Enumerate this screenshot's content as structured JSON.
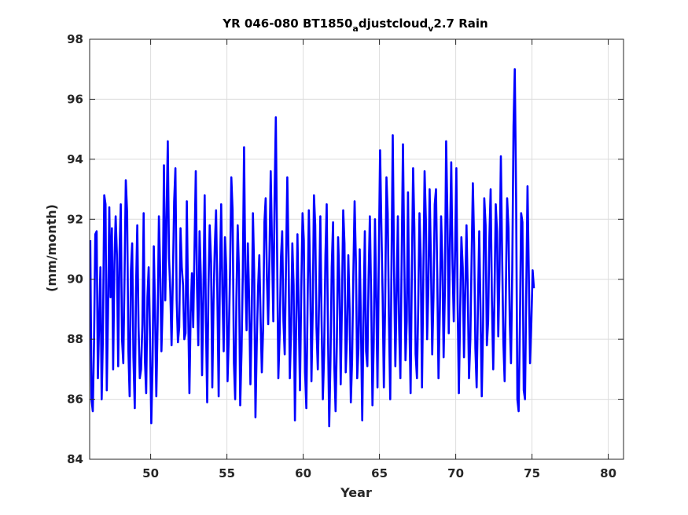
{
  "chart_data": {
    "type": "line",
    "title": {
      "prefix": "YR 046-080 BT1850",
      "sub1": "a",
      "mid": "djustcloud",
      "sub2": "v",
      "suffix": "2.7 Rain"
    },
    "xlabel": "Year",
    "ylabel": "(mm/month)",
    "xlim": [
      46,
      81
    ],
    "ylim": [
      84,
      98
    ],
    "xticks": [
      50,
      55,
      60,
      65,
      70,
      75,
      80
    ],
    "yticks": [
      84,
      86,
      88,
      90,
      92,
      94,
      96,
      98
    ],
    "grid": true,
    "colors": {
      "line": "#0000ff",
      "grid": "#dcdcdc",
      "axes": "#262626"
    },
    "series": [
      {
        "x_start": 46.04,
        "x_step": 0.0833333,
        "values": [
          91.3,
          86.0,
          85.6,
          87.9,
          91.5,
          91.6,
          86.7,
          88.6,
          90.4,
          86.0,
          88.1,
          92.8,
          92.5,
          86.3,
          88.9,
          92.4,
          89.4,
          91.7,
          87.0,
          90.5,
          92.1,
          90.8,
          87.1,
          90.9,
          92.5,
          88.0,
          87.2,
          90.1,
          93.3,
          92.2,
          87.6,
          86.1,
          90.3,
          91.2,
          87.4,
          85.7,
          89.7,
          91.8,
          88.4,
          86.7,
          87.0,
          88.5,
          92.2,
          87.3,
          86.2,
          89.4,
          90.4,
          88.0,
          85.2,
          87.1,
          91.1,
          88.9,
          86.1,
          88.6,
          92.1,
          90.3,
          87.6,
          89.2,
          93.8,
          89.3,
          92.0,
          94.6,
          90.7,
          89.6,
          87.8,
          90.1,
          92.6,
          93.7,
          89.3,
          87.9,
          88.4,
          91.7,
          90.4,
          89.8,
          88.0,
          88.2,
          92.6,
          89.0,
          86.2,
          88.9,
          90.2,
          88.4,
          90.9,
          93.6,
          89.7,
          87.8,
          91.6,
          90.1,
          86.8,
          89.6,
          92.8,
          88.6,
          85.9,
          89.7,
          91.8,
          90.6,
          86.4,
          89.3,
          91.1,
          92.3,
          89.6,
          86.1,
          90.2,
          92.5,
          89.5,
          87.6,
          91.4,
          90.3,
          86.6,
          88.1,
          90.3,
          93.4,
          92.3,
          87.2,
          86.0,
          89.4,
          91.8,
          90.3,
          85.8,
          87.6,
          90.2,
          94.4,
          90.1,
          88.3,
          91.2,
          89.3,
          86.5,
          88.7,
          92.2,
          90.2,
          85.4,
          87.9,
          89.7,
          90.8,
          88.7,
          86.9,
          88.3,
          91.9,
          92.7,
          90.0,
          88.5,
          90.8,
          93.6,
          91.0,
          88.6,
          92.7,
          95.4,
          91.0,
          86.7,
          88.2,
          90.7,
          91.6,
          88.6,
          87.5,
          90.4,
          93.4,
          90.7,
          86.7,
          88.3,
          91.2,
          89.8,
          85.3,
          88.5,
          91.5,
          88.9,
          86.3,
          89.6,
          92.2,
          91.3,
          86.9,
          85.7,
          89.2,
          92.3,
          90.1,
          86.6,
          88.9,
          92.8,
          91.8,
          88.4,
          87.0,
          89.3,
          92.1,
          88.6,
          86.0,
          87.5,
          90.8,
          92.5,
          88.3,
          85.1,
          87.3,
          90.4,
          91.9,
          87.1,
          85.6,
          87.9,
          91.4,
          90.0,
          86.5,
          89.2,
          92.3,
          91.2,
          86.9,
          88.1,
          90.8,
          89.0,
          85.9,
          87.3,
          90.2,
          92.6,
          90.5,
          86.7,
          87.7,
          91.0,
          88.4,
          85.3,
          88.9,
          91.6,
          87.6,
          87.1,
          90.1,
          92.1,
          89.3,
          85.8,
          87.9,
          92.0,
          89.4,
          86.4,
          90.8,
          94.3,
          91.8,
          89.5,
          86.4,
          89.1,
          93.4,
          92.2,
          88.6,
          86.0,
          90.5,
          94.8,
          90.3,
          87.1,
          89.5,
          92.1,
          88.4,
          86.7,
          90.8,
          94.5,
          90.8,
          87.3,
          88.6,
          92.9,
          88.7,
          86.2,
          90.3,
          93.7,
          91.7,
          87.5,
          86.7,
          89.1,
          92.2,
          90.7,
          86.4,
          89.8,
          93.6,
          92.0,
          88.0,
          89.7,
          93.0,
          90.7,
          87.5,
          89.4,
          92.5,
          93.0,
          90.1,
          86.7,
          89.0,
          92.1,
          90.6,
          87.4,
          89.6,
          94.6,
          92.0,
          88.2,
          91.3,
          93.9,
          90.5,
          88.6,
          91.0,
          93.7,
          89.2,
          86.2,
          88.9,
          91.4,
          90.4,
          87.4,
          89.6,
          91.8,
          89.6,
          86.7,
          88.0,
          90.7,
          93.2,
          91.2,
          87.7,
          86.4,
          89.2,
          91.6,
          89.0,
          86.1,
          88.3,
          92.7,
          91.8,
          87.8,
          88.6,
          91.4,
          93.0,
          89.3,
          87.0,
          89.5,
          92.5,
          91.6,
          88.1,
          90.3,
          94.1,
          90.8,
          87.9,
          86.6,
          89.7,
          92.7,
          91.7,
          88.6,
          87.2,
          90.3,
          95.1,
          97.0,
          92.7,
          86.0,
          85.6,
          88.4,
          92.2,
          91.9,
          86.3,
          86.0,
          89.6,
          93.1,
          90.2,
          87.2,
          88.6,
          90.3,
          89.7
        ]
      }
    ]
  }
}
